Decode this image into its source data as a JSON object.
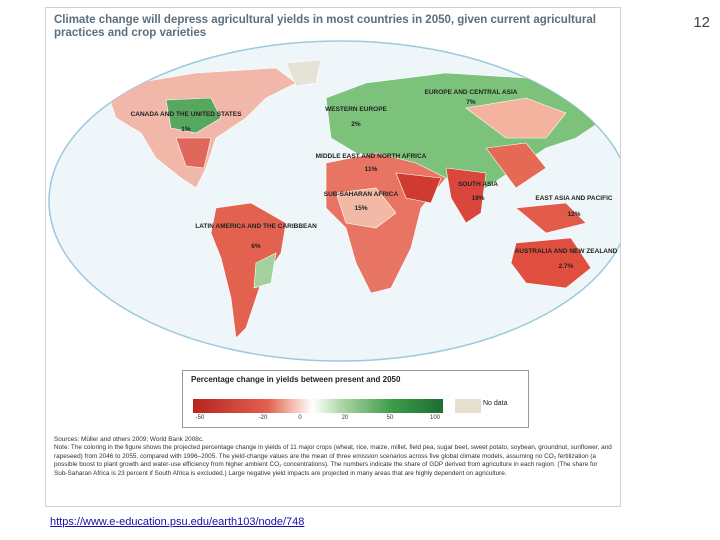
{
  "slide_number": "12",
  "figure": {
    "title": "Climate change will depress agricultural yields in most countries in 2050, given current agricultural practices and crop varieties",
    "regions": [
      {
        "label": "CANADA AND THE UNITED STATES",
        "share": "1%"
      },
      {
        "label": "WESTERN EUROPE",
        "share": "2%"
      },
      {
        "label": "EUROPE AND CENTRAL ASIA",
        "share": "7%"
      },
      {
        "label": "MIDDLE EAST AND NORTH AFRICA",
        "share": "11%"
      },
      {
        "label": "SUB-SAHARAN AFRICA",
        "share": "15%"
      },
      {
        "label": "SOUTH ASIA",
        "share": "18%"
      },
      {
        "label": "EAST ASIA AND PACIFIC",
        "share": "12%"
      },
      {
        "label": "LATIN AMERICA AND THE CARIBBEAN",
        "share": "6%"
      },
      {
        "label": "AUSTRALIA AND NEW ZEALAND",
        "share": "2.7%"
      }
    ],
    "legend": {
      "title": "Percentage change in yields between present and 2050",
      "ticks": [
        "-50",
        "-20",
        "0",
        "20",
        "50",
        "100"
      ],
      "no_data": "No data"
    },
    "sources": "Sources: Müller and others 2009; World Bank 2008c.",
    "note": "Note: The coloring in the figure shows the projected percentage change in yields of 11 major crops (wheat, rice, maize, millet, field pea, sugar beet, sweet potato, soybean, groundnut, sunflower, and rapeseed) from 2046 to 2055, compared with 1996–2005. The yield-change values are the mean of three emission scenarios across five global climate models, assuming no CO₂ fertilization (a possible boost to plant growth and water-use efficiency from higher ambient CO₂ concentrations). The numbers indicate the share of GDP derived from agriculture in each region. (The share for Sub-Saharan Africa is 23 percent if South Africa is excluded.) Large negative yield impacts are projected in many areas that are highly dependent on agriculture."
  },
  "link": "https://www.e-education.psu.edu/earth103/node/748"
}
